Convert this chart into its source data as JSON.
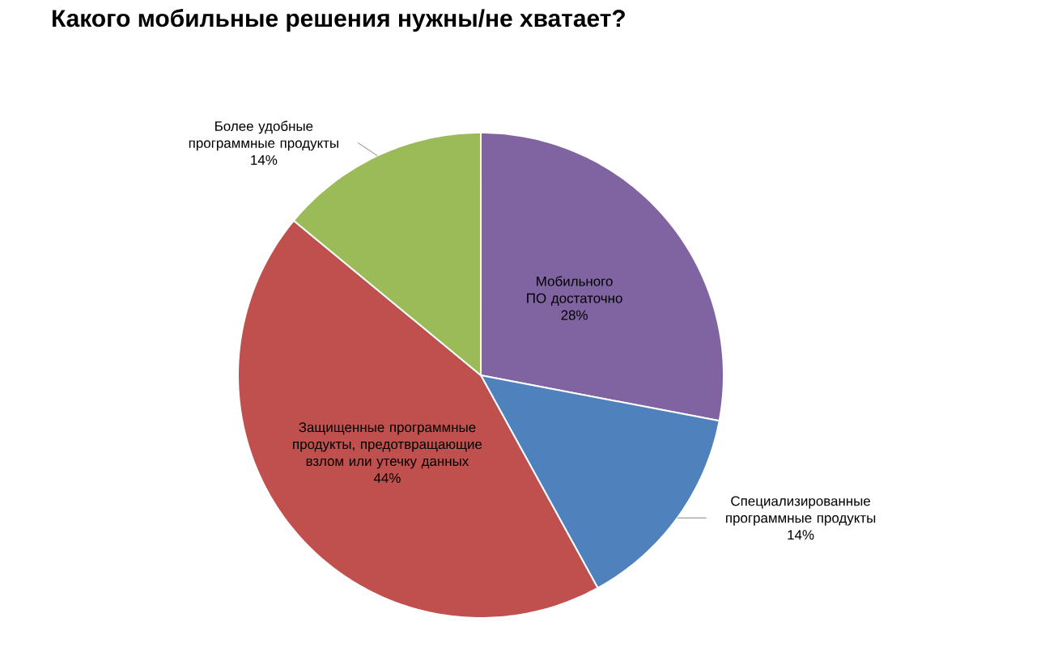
{
  "chart_data": {
    "type": "pie",
    "title": "Какого мобильные решения нужны/не хватает?",
    "categories": [
      "Мобильного ПО достаточно",
      "Специализированные программные продукты",
      "Защищенные программные продукты, предотвращающие взлом или утечку данных",
      "Более удобные программные продукты"
    ],
    "values": [
      28,
      14,
      44,
      14
    ],
    "colors": [
      "#8064a2",
      "#4f81bd",
      "#c0504d",
      "#9bbb59"
    ],
    "value_labels": [
      "28%",
      "14%",
      "44%",
      "14%"
    ]
  }
}
